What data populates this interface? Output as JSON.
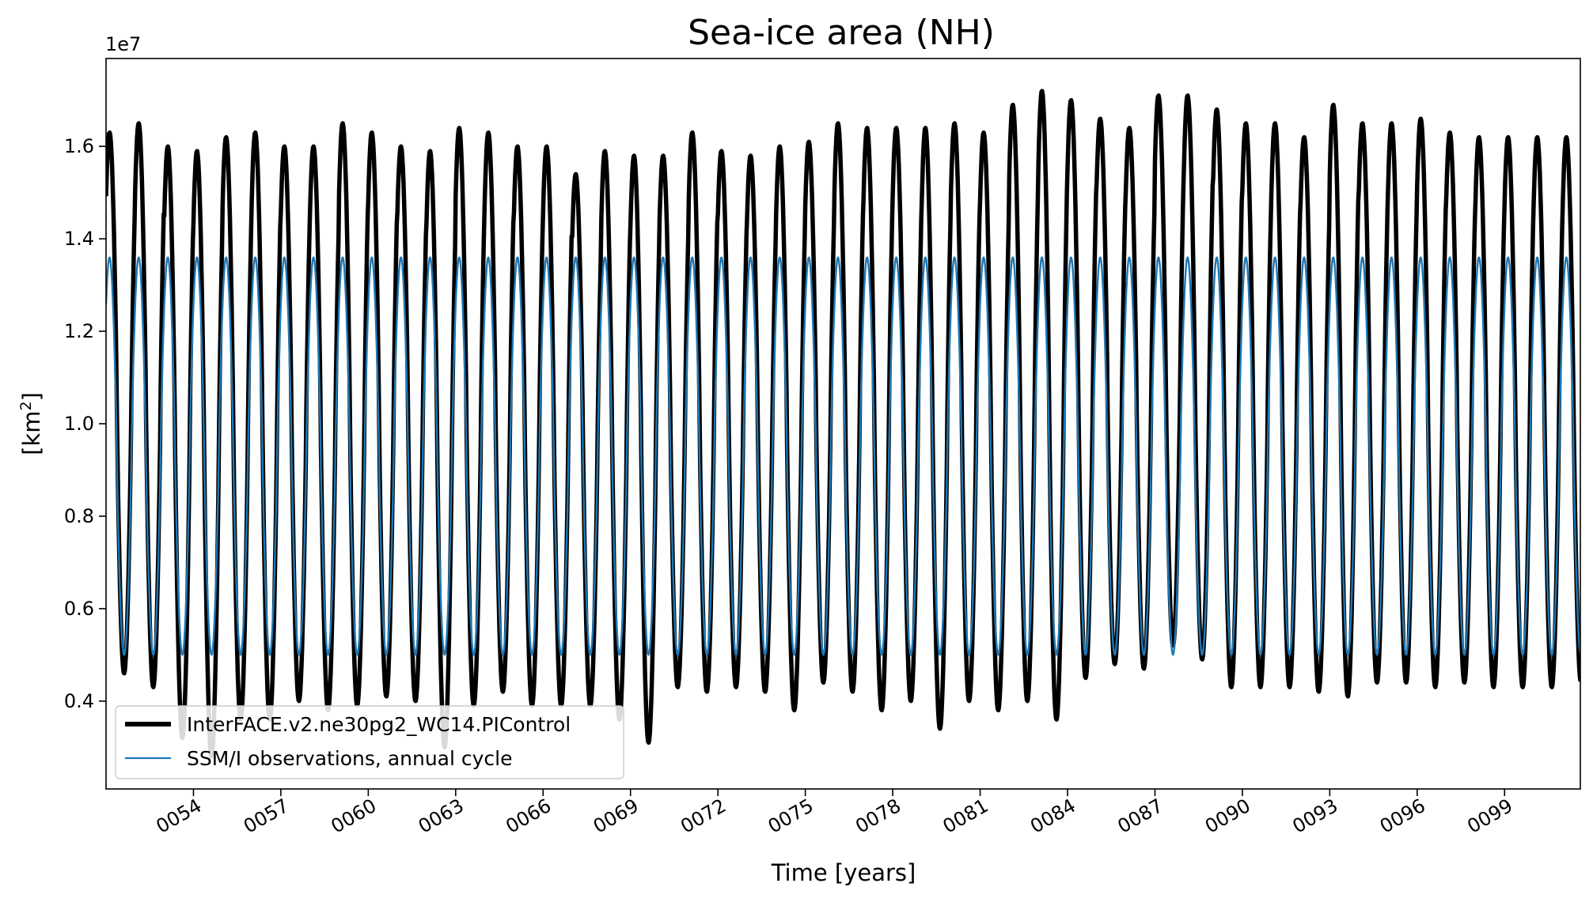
{
  "chart_data": {
    "type": "line",
    "title": "Sea-ice area (NH)",
    "xlabel": "Time [years]",
    "ylabel_main": "[km",
    "ylabel_sup": "2",
    "ylabel_end": "]",
    "y_offset_label": "1e7",
    "xlim": [
      51.0,
      101.6
    ],
    "ylim": [
      0.21,
      1.79
    ],
    "yticks": [
      0.4,
      0.6,
      0.8,
      1.0,
      1.2,
      1.4,
      1.6
    ],
    "ytick_labels": [
      "0.4",
      "0.6",
      "0.8",
      "1.0",
      "1.2",
      "1.4",
      "1.6"
    ],
    "xticks": [
      54,
      57,
      60,
      63,
      66,
      69,
      72,
      75,
      78,
      81,
      84,
      87,
      90,
      93,
      96,
      99
    ],
    "xtick_labels": [
      "0054",
      "0057",
      "0060",
      "0063",
      "0066",
      "0069",
      "0072",
      "0075",
      "0078",
      "0081",
      "0084",
      "0087",
      "0090",
      "0093",
      "0096",
      "0099"
    ],
    "series": [
      {
        "name": "InterFACE.v2.ne30pg2_WC14.PIControl",
        "color": "#000000",
        "x_start": 51.0,
        "x_end": 101.6,
        "annual_max": [
          1.63,
          1.65,
          1.6,
          1.59,
          1.62,
          1.63,
          1.6,
          1.6,
          1.65,
          1.63,
          1.6,
          1.59,
          1.64,
          1.63,
          1.6,
          1.6,
          1.54,
          1.59,
          1.58,
          1.58,
          1.63,
          1.59,
          1.58,
          1.6,
          1.61,
          1.65,
          1.64,
          1.64,
          1.64,
          1.65,
          1.63,
          1.69,
          1.72,
          1.7,
          1.66,
          1.64,
          1.71,
          1.71,
          1.68,
          1.65,
          1.65,
          1.62,
          1.69,
          1.65,
          1.65,
          1.66,
          1.63,
          1.62,
          1.62,
          1.62,
          1.62
        ],
        "annual_min": [
          0.46,
          0.43,
          0.32,
          0.28,
          0.36,
          0.36,
          0.4,
          0.38,
          0.39,
          0.41,
          0.4,
          0.3,
          0.39,
          0.42,
          0.39,
          0.39,
          0.39,
          0.36,
          0.31,
          0.43,
          0.42,
          0.43,
          0.42,
          0.38,
          0.44,
          0.42,
          0.38,
          0.4,
          0.34,
          0.4,
          0.38,
          0.4,
          0.36,
          0.45,
          0.48,
          0.47,
          0.52,
          0.49,
          0.43,
          0.43,
          0.43,
          0.42,
          0.41,
          0.44,
          0.44,
          0.43,
          0.44,
          0.43,
          0.43,
          0.43,
          0.44
        ]
      },
      {
        "name": "SSM/I observations, annual cycle",
        "color": "#1f77b4",
        "x_start": 51.0,
        "x_end": 101.6,
        "annual_max": 1.36,
        "annual_min": 0.5
      }
    ],
    "legend_position": "lower-left",
    "grid": false
  }
}
